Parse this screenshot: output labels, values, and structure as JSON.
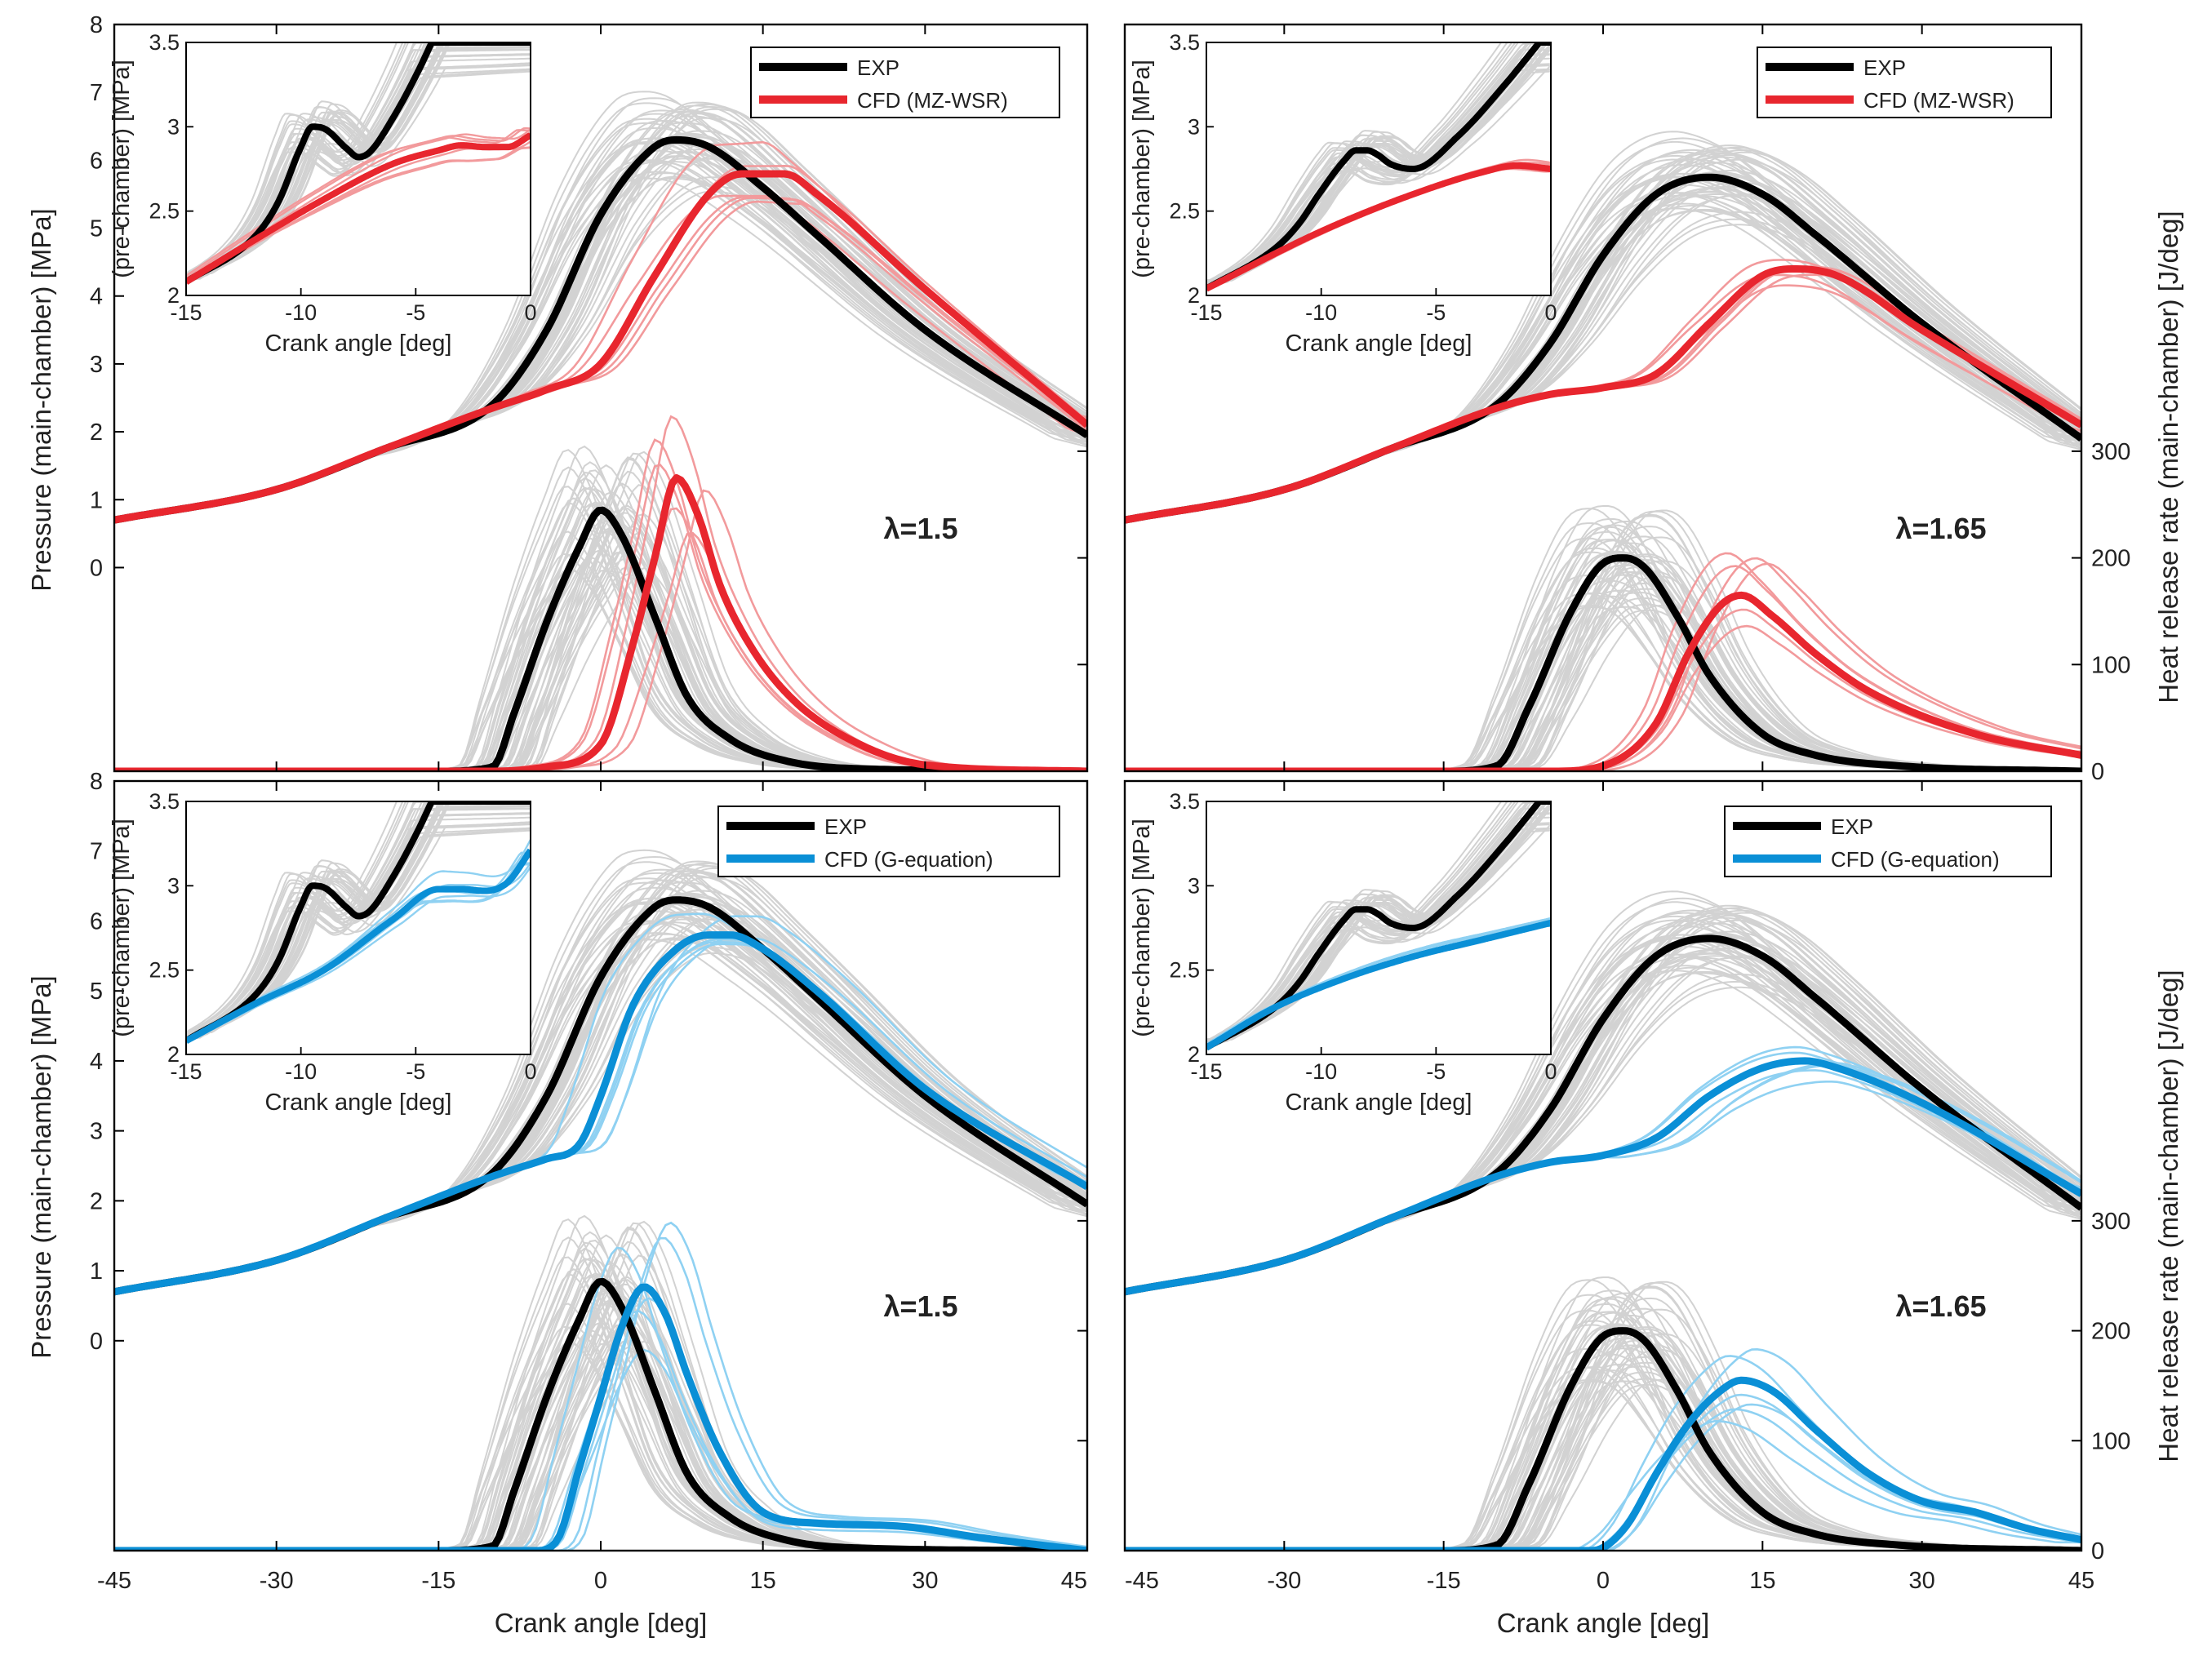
{
  "figure": {
    "panels": [
      {
        "id": "top-left",
        "model_legend": "CFD (MZ-WSR)",
        "exp_legend": "EXP",
        "lambda_label": "λ=1.5",
        "color": "#e8262e",
        "light_color": "#f29a9c",
        "inset_xlabel": "Crank angle [deg]",
        "inset_ylabel": "(pre-chamber) [MPa]"
      },
      {
        "id": "top-right",
        "model_legend": "CFD (MZ-WSR)",
        "exp_legend": "EXP",
        "lambda_label": "λ=1.65",
        "color": "#e8262e",
        "light_color": "#f29a9c",
        "inset_xlabel": "Crank angle [deg]",
        "inset_ylabel": "(pre-chamber) [MPa]"
      },
      {
        "id": "bottom-left",
        "model_legend": "CFD (G-equation)",
        "exp_legend": "EXP",
        "lambda_label": "λ=1.5",
        "color": "#0a8fd6",
        "light_color": "#8fd1f2",
        "inset_xlabel": "Crank angle [deg]",
        "inset_ylabel": "(pre-chamber) [MPa]"
      },
      {
        "id": "bottom-right",
        "model_legend": "CFD (G-equation)",
        "exp_legend": "EXP",
        "lambda_label": "λ=1.65",
        "color": "#0a8fd6",
        "light_color": "#8fd1f2",
        "inset_xlabel": "Crank angle [deg]",
        "inset_ylabel": "(pre-chamber) [MPa]"
      }
    ],
    "left_ylabel": "Pressure (main-chamber) [MPa]",
    "right_ylabel": "Heat release rate (main-chamber) [J/deg]",
    "xlabel": "Crank angle [deg]"
  },
  "chart_data": [
    {
      "type": "line",
      "panel": "top-left",
      "title": "",
      "xlabel": "Crank angle [deg]",
      "ylabel_left": "Pressure (main-chamber) [MPa]",
      "xlim": [
        -45,
        45
      ],
      "ylim_pressure": [
        -3,
        8
      ],
      "pressure_ticks": [
        0,
        1,
        2,
        3,
        4,
        5,
        6,
        7,
        8
      ],
      "ylim_hrr": [
        0,
        700
      ],
      "hrr_ticks": [],
      "x_ticks": [],
      "annotation": "λ=1.5",
      "series": [
        {
          "name": "EXP",
          "quantity": "pressure",
          "x": [
            -45,
            -30,
            -20,
            -10,
            -5,
            0,
            5,
            7,
            10,
            15,
            20,
            30,
            45
          ],
          "values": [
            0.7,
            1.15,
            1.75,
            2.4,
            3.5,
            5.2,
            6.2,
            6.3,
            6.2,
            5.6,
            4.9,
            3.5,
            1.95
          ]
        },
        {
          "name": "CFD (MZ-WSR)",
          "quantity": "pressure",
          "x": [
            -45,
            -30,
            -20,
            -10,
            -5,
            0,
            5,
            10,
            13,
            17,
            20,
            30,
            45
          ],
          "values": [
            0.7,
            1.15,
            1.75,
            2.35,
            2.62,
            3.0,
            4.3,
            5.5,
            5.8,
            5.8,
            5.5,
            4.1,
            2.1
          ]
        },
        {
          "name": "EXP",
          "quantity": "hrr",
          "x": [
            -45,
            -15,
            -10,
            -8,
            -5,
            -2,
            0,
            2,
            5,
            8,
            12,
            17,
            25,
            45
          ],
          "values": [
            0,
            0,
            4,
            55,
            140,
            210,
            245,
            220,
            145,
            70,
            30,
            10,
            2,
            0
          ]
        },
        {
          "name": "CFD (MZ-WSR)",
          "quantity": "hrr",
          "x": [
            -45,
            -10,
            -5,
            0,
            3,
            5,
            7,
            9,
            11,
            14,
            18,
            24,
            30,
            45
          ],
          "values": [
            0,
            0,
            4,
            25,
            120,
            200,
            275,
            240,
            175,
            115,
            65,
            25,
            6,
            0
          ]
        }
      ],
      "inset": {
        "xlim": [
          -15,
          0
        ],
        "ylim": [
          2,
          3.5
        ],
        "x_ticks": [
          -15,
          -10,
          -5,
          0
        ],
        "y_ticks": [
          2,
          2.5,
          3,
          3.5
        ],
        "series": [
          {
            "name": "EXP",
            "x": [
              -15,
              -12,
              -11,
              -10,
              -9.5,
              -9,
              -8,
              -7.5,
              -7,
              -6,
              -5,
              -4.3
            ],
            "values": [
              2.08,
              2.35,
              2.55,
              2.88,
              3.0,
              2.99,
              2.87,
              2.82,
              2.85,
              3.05,
              3.3,
              3.5
            ]
          },
          {
            "name": "CFD (MZ-WSR)",
            "x": [
              -15,
              -12,
              -9,
              -6,
              -4,
              -3,
              -2,
              -1,
              0
            ],
            "values": [
              2.08,
              2.33,
              2.57,
              2.78,
              2.86,
              2.89,
              2.88,
              2.88,
              2.95
            ]
          }
        ]
      }
    },
    {
      "type": "line",
      "panel": "top-right",
      "title": "",
      "xlabel": "Crank angle [deg]",
      "ylabel_right": "Heat release rate (main-chamber) [J/deg]",
      "xlim": [
        -45,
        45
      ],
      "ylim_pressure": [
        -3,
        8
      ],
      "pressure_ticks": [],
      "ylim_hrr": [
        0,
        700
      ],
      "hrr_ticks": [
        0,
        100,
        200,
        300
      ],
      "x_ticks": [],
      "annotation": "λ=1.65",
      "series": [
        {
          "name": "EXP",
          "quantity": "pressure",
          "x": [
            -45,
            -30,
            -20,
            -10,
            -5,
            0,
            5,
            10,
            15,
            20,
            30,
            45
          ],
          "values": [
            0.7,
            1.15,
            1.75,
            2.4,
            3.3,
            4.6,
            5.5,
            5.75,
            5.5,
            4.9,
            3.6,
            1.9
          ]
        },
        {
          "name": "CFD (MZ-WSR)",
          "quantity": "pressure",
          "x": [
            -45,
            -30,
            -20,
            -10,
            -5,
            0,
            5,
            10,
            15,
            18,
            22,
            30,
            45
          ],
          "values": [
            0.7,
            1.15,
            1.75,
            2.35,
            2.55,
            2.65,
            2.85,
            3.6,
            4.3,
            4.4,
            4.3,
            3.5,
            2.1
          ]
        },
        {
          "name": "EXP",
          "quantity": "hrr",
          "x": [
            -45,
            -15,
            -10,
            -7,
            -3,
            0,
            2,
            4,
            7,
            10,
            15,
            20,
            28,
            45
          ],
          "values": [
            0,
            0,
            5,
            60,
            150,
            195,
            200,
            190,
            145,
            90,
            35,
            15,
            5,
            0
          ]
        },
        {
          "name": "CFD (MZ-WSR)",
          "quantity": "hrr",
          "x": [
            -45,
            -5,
            0,
            5,
            8,
            11,
            13,
            16,
            20,
            25,
            35,
            45
          ],
          "values": [
            0,
            0,
            5,
            45,
            110,
            155,
            165,
            145,
            110,
            75,
            35,
            15
          ]
        }
      ],
      "inset": {
        "xlim": [
          -15,
          0
        ],
        "ylim": [
          2,
          3.5
        ],
        "x_ticks": [
          -15,
          -10,
          -5,
          0
        ],
        "y_ticks": [
          2,
          2.5,
          3,
          3.5
        ],
        "series": [
          {
            "name": "EXP",
            "x": [
              -15,
              -12,
              -11,
              -10,
              -9,
              -8.5,
              -8,
              -7.5,
              -7,
              -6,
              -4,
              -2,
              -0.5
            ],
            "values": [
              2.04,
              2.28,
              2.42,
              2.62,
              2.8,
              2.86,
              2.86,
              2.83,
              2.78,
              2.75,
              2.95,
              3.25,
              3.5
            ]
          },
          {
            "name": "CFD (MZ-WSR)",
            "x": [
              -15,
              -10,
              -6,
              -3,
              -1.5,
              0
            ],
            "values": [
              2.04,
              2.38,
              2.6,
              2.73,
              2.77,
              2.75
            ]
          }
        ]
      }
    },
    {
      "type": "line",
      "panel": "bottom-left",
      "title": "",
      "xlabel": "Crank angle [deg]",
      "ylabel_left": "Pressure (main-chamber) [MPa]",
      "xlim": [
        -45,
        45
      ],
      "ylim_pressure": [
        -3,
        8
      ],
      "pressure_ticks": [
        0,
        1,
        2,
        3,
        4,
        5,
        6,
        7,
        8
      ],
      "ylim_hrr": [
        0,
        700
      ],
      "hrr_ticks": [],
      "x_ticks": [
        -45,
        -30,
        -15,
        0,
        15,
        30,
        45
      ],
      "annotation": "λ=1.5",
      "series": [
        {
          "name": "EXP",
          "quantity": "pressure",
          "x": [
            -45,
            -30,
            -20,
            -10,
            -5,
            0,
            5,
            7,
            10,
            15,
            20,
            30,
            45
          ],
          "values": [
            0.7,
            1.15,
            1.75,
            2.4,
            3.5,
            5.2,
            6.2,
            6.3,
            6.2,
            5.6,
            4.9,
            3.5,
            1.95
          ]
        },
        {
          "name": "CFD (G-equation)",
          "quantity": "pressure",
          "x": [
            -45,
            -30,
            -20,
            -10,
            -5,
            -2,
            0,
            3,
            7,
            10,
            12,
            15,
            20,
            30,
            45
          ],
          "values": [
            0.7,
            1.15,
            1.75,
            2.35,
            2.6,
            2.8,
            3.5,
            4.8,
            5.6,
            5.8,
            5.8,
            5.6,
            5.0,
            3.6,
            2.2
          ]
        },
        {
          "name": "EXP",
          "quantity": "hrr",
          "x": [
            -45,
            -15,
            -10,
            -8,
            -5,
            -2,
            0,
            2,
            5,
            8,
            12,
            17,
            25,
            45
          ],
          "values": [
            0,
            0,
            4,
            55,
            140,
            210,
            245,
            220,
            145,
            70,
            30,
            10,
            2,
            0
          ]
        },
        {
          "name": "CFD (G-equation)",
          "quantity": "hrr",
          "x": [
            -45,
            -6,
            -4,
            -2,
            0,
            2,
            4,
            6,
            8,
            11,
            15,
            20,
            28,
            35,
            45
          ],
          "values": [
            0,
            0,
            10,
            75,
            140,
            205,
            240,
            215,
            160,
            90,
            35,
            25,
            22,
            12,
            0
          ]
        }
      ],
      "inset": {
        "xlim": [
          -15,
          0
        ],
        "ylim": [
          2,
          3.5
        ],
        "x_ticks": [
          -15,
          -10,
          -5,
          0
        ],
        "y_ticks": [
          2,
          2.5,
          3,
          3.5
        ],
        "series": [
          {
            "name": "EXP",
            "x": [
              -15,
              -12,
              -11,
              -10,
              -9.5,
              -9,
              -8,
              -7.5,
              -7,
              -6,
              -5,
              -4.3
            ],
            "values": [
              2.08,
              2.35,
              2.55,
              2.88,
              3.0,
              2.99,
              2.87,
              2.82,
              2.85,
              3.05,
              3.3,
              3.5
            ]
          },
          {
            "name": "CFD (G-equation)",
            "x": [
              -15,
              -12,
              -9,
              -6,
              -4,
              -3,
              -2,
              -1,
              0
            ],
            "values": [
              2.08,
              2.3,
              2.5,
              2.8,
              2.98,
              2.98,
              2.97,
              3.02,
              3.21
            ]
          }
        ]
      }
    },
    {
      "type": "line",
      "panel": "bottom-right",
      "title": "",
      "xlabel": "Crank angle [deg]",
      "ylabel_right": "Heat release rate (main-chamber) [J/deg]",
      "xlim": [
        -45,
        45
      ],
      "ylim_pressure": [
        -3,
        8
      ],
      "pressure_ticks": [],
      "ylim_hrr": [
        0,
        700
      ],
      "hrr_ticks": [
        0,
        100,
        200,
        300
      ],
      "x_ticks": [
        -45,
        -30,
        -15,
        0,
        15,
        30,
        45
      ],
      "annotation": "λ=1.65",
      "series": [
        {
          "name": "EXP",
          "quantity": "pressure",
          "x": [
            -45,
            -30,
            -20,
            -10,
            -5,
            0,
            5,
            10,
            15,
            20,
            30,
            45
          ],
          "values": [
            0.7,
            1.15,
            1.75,
            2.4,
            3.3,
            4.6,
            5.5,
            5.75,
            5.5,
            4.9,
            3.6,
            1.9
          ]
        },
        {
          "name": "CFD (G-equation)",
          "quantity": "pressure",
          "x": [
            -45,
            -30,
            -20,
            -10,
            -5,
            0,
            5,
            10,
            15,
            19,
            22,
            30,
            45
          ],
          "values": [
            0.7,
            1.15,
            1.75,
            2.35,
            2.55,
            2.65,
            2.9,
            3.5,
            3.9,
            4.0,
            3.9,
            3.4,
            2.1
          ]
        },
        {
          "name": "EXP",
          "quantity": "hrr",
          "x": [
            -45,
            -15,
            -10,
            -7,
            -3,
            0,
            2,
            4,
            7,
            10,
            15,
            20,
            28,
            45
          ],
          "values": [
            0,
            0,
            5,
            60,
            150,
            195,
            200,
            190,
            145,
            90,
            35,
            15,
            5,
            0
          ]
        },
        {
          "name": "CFD (G-equation)",
          "quantity": "hrr",
          "x": [
            -45,
            -1,
            2,
            5,
            8,
            11,
            13,
            16,
            20,
            25,
            30,
            35,
            40,
            45
          ],
          "values": [
            0,
            0,
            20,
            70,
            115,
            145,
            155,
            145,
            110,
            70,
            45,
            35,
            20,
            10
          ]
        }
      ],
      "inset": {
        "xlim": [
          -15,
          0
        ],
        "ylim": [
          2,
          3.5
        ],
        "x_ticks": [
          -15,
          -10,
          -5,
          0
        ],
        "y_ticks": [
          2,
          2.5,
          3,
          3.5
        ],
        "series": [
          {
            "name": "EXP",
            "x": [
              -15,
              -12,
              -11,
              -10,
              -9,
              -8.5,
              -8,
              -7.5,
              -7,
              -6,
              -4,
              -2,
              -0.5
            ],
            "values": [
              2.04,
              2.28,
              2.42,
              2.62,
              2.8,
              2.86,
              2.86,
              2.83,
              2.78,
              2.75,
              2.95,
              3.25,
              3.5
            ]
          },
          {
            "name": "CFD (G-equation)",
            "x": [
              -15,
              -12,
              -9,
              -6,
              -3,
              0
            ],
            "values": [
              2.04,
              2.28,
              2.45,
              2.58,
              2.68,
              2.78
            ]
          }
        ]
      }
    }
  ]
}
